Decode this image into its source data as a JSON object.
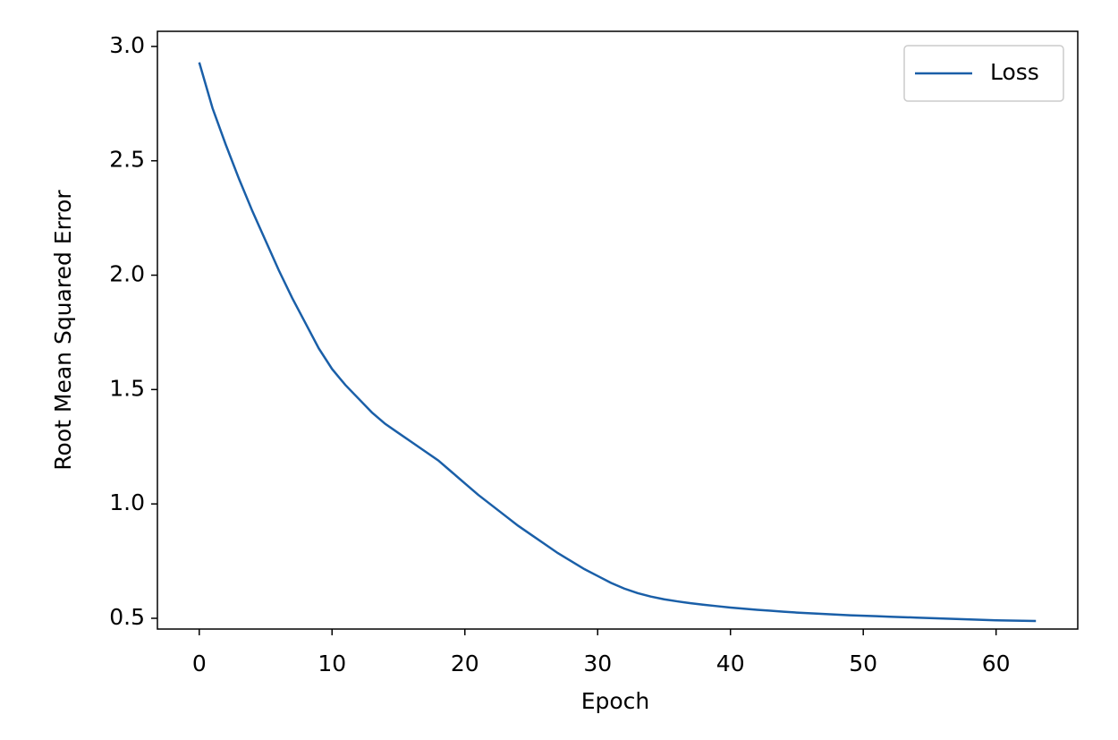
{
  "chart_data": {
    "type": "line",
    "x_label": "Epoch",
    "y_label": "Root Mean Squared Error",
    "x": [
      0,
      1,
      2,
      3,
      4,
      5,
      6,
      7,
      8,
      9,
      10,
      11,
      12,
      13,
      14,
      15,
      16,
      17,
      18,
      19,
      20,
      21,
      22,
      23,
      24,
      25,
      26,
      27,
      28,
      29,
      30,
      31,
      32,
      33,
      34,
      35,
      36,
      37,
      38,
      39,
      40,
      41,
      42,
      43,
      44,
      45,
      46,
      47,
      48,
      49,
      50,
      51,
      52,
      53,
      54,
      55,
      56,
      57,
      58,
      59,
      60,
      61,
      62,
      63
    ],
    "series": [
      {
        "name": "Loss",
        "color": "#1a5fa8",
        "values": [
          2.93,
          2.73,
          2.57,
          2.42,
          2.28,
          2.15,
          2.02,
          1.9,
          1.79,
          1.68,
          1.59,
          1.52,
          1.46,
          1.4,
          1.35,
          1.31,
          1.27,
          1.23,
          1.19,
          1.14,
          1.09,
          1.04,
          0.995,
          0.95,
          0.905,
          0.865,
          0.825,
          0.785,
          0.75,
          0.715,
          0.685,
          0.655,
          0.63,
          0.61,
          0.595,
          0.583,
          0.574,
          0.566,
          0.559,
          0.553,
          0.547,
          0.542,
          0.537,
          0.533,
          0.529,
          0.525,
          0.522,
          0.519,
          0.516,
          0.513,
          0.511,
          0.509,
          0.507,
          0.505,
          0.503,
          0.501,
          0.499,
          0.497,
          0.495,
          0.493,
          0.491,
          0.49,
          0.489,
          0.488
        ]
      }
    ],
    "xlim": [
      -3.15,
      66.15
    ],
    "xticks": [
      0,
      10,
      20,
      30,
      40,
      50,
      60
    ],
    "ylim": [
      0.453,
      3.066
    ],
    "yticks": [
      {
        "value": 0.5,
        "label": "0.5"
      },
      {
        "value": 1,
        "label": "1.0"
      },
      {
        "value": 1.5,
        "label": "1.5"
      },
      {
        "value": 2,
        "label": "2.0"
      },
      {
        "value": 2.5,
        "label": "2.5"
      },
      {
        "value": 3,
        "label": "3.0"
      }
    ],
    "legend": "upper right"
  }
}
